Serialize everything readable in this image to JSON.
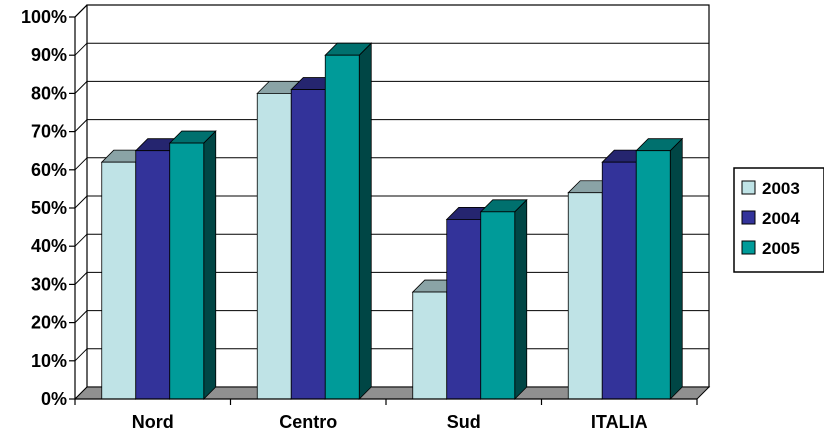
{
  "chart_data": {
    "type": "bar",
    "categories": [
      "Nord",
      "Centro",
      "Sud",
      "ITALIA"
    ],
    "series": [
      {
        "name": "2003",
        "values": [
          62,
          80,
          28,
          54
        ],
        "color": "#bfe3e6"
      },
      {
        "name": "2004",
        "values": [
          65,
          81,
          47,
          62
        ],
        "color": "#33339a"
      },
      {
        "name": "2005",
        "values": [
          67,
          90,
          49,
          65
        ],
        "color": "#009b99"
      }
    ],
    "yticks": [
      "0%",
      "10%",
      "20%",
      "30%",
      "40%",
      "50%",
      "60%",
      "70%",
      "80%",
      "90%",
      "100%"
    ],
    "ylim": [
      0,
      100
    ],
    "grid": true,
    "legend_position": "right",
    "title": "",
    "xlabel": "",
    "ylabel": ""
  }
}
